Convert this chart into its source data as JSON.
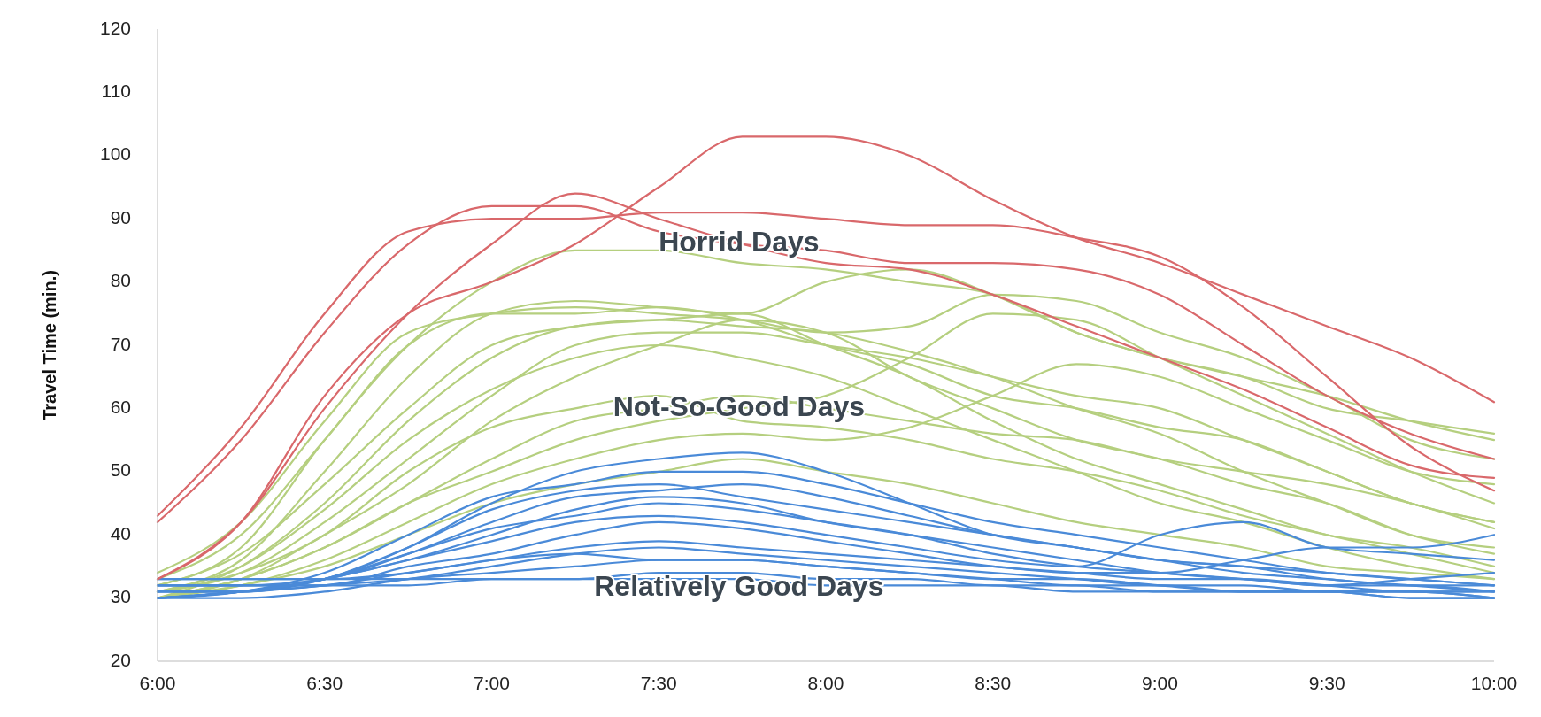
{
  "chart_data": {
    "type": "line",
    "ylabel": "Travel Time (min.)",
    "x": [
      6,
      6.25,
      6.5,
      6.75,
      7,
      7.25,
      7.5,
      7.75,
      8,
      8.25,
      8.5,
      8.75,
      9,
      9.25,
      9.5,
      9.75,
      10
    ],
    "xlim": [
      6,
      10
    ],
    "xticks": [
      {
        "value": 6,
        "label": "6:00"
      },
      {
        "value": 6.5,
        "label": "6:30"
      },
      {
        "value": 7,
        "label": "7:00"
      },
      {
        "value": 7.5,
        "label": "7:30"
      },
      {
        "value": 8,
        "label": "8:00"
      },
      {
        "value": 8.5,
        "label": "8:30"
      },
      {
        "value": 9,
        "label": "9:00"
      },
      {
        "value": 9.5,
        "label": "9:30"
      },
      {
        "value": 10,
        "label": "10:00"
      }
    ],
    "ylim": [
      20,
      120
    ],
    "yticks": [
      20,
      30,
      40,
      50,
      60,
      70,
      80,
      90,
      100,
      110,
      120
    ],
    "series": [
      {
        "color": "#b5cf7f",
        "values": [
          32,
          38,
          55,
          70,
          80,
          85,
          85,
          83,
          82,
          80,
          78,
          72,
          68,
          65,
          62,
          58,
          55
        ]
      },
      {
        "color": "#b5cf7f",
        "values": [
          31,
          36,
          50,
          65,
          75,
          77,
          76,
          75,
          80,
          82,
          78,
          72,
          68,
          65,
          60,
          58,
          56
        ]
      },
      {
        "color": "#b5cf7f",
        "values": [
          34,
          42,
          58,
          72,
          75,
          76,
          75,
          74,
          72,
          73,
          78,
          77,
          72,
          68,
          62,
          55,
          52
        ]
      },
      {
        "color": "#b5cf7f",
        "values": [
          33,
          40,
          55,
          70,
          75,
          75,
          76,
          74,
          70,
          67,
          62,
          60,
          57,
          55,
          50,
          45,
          42
        ]
      },
      {
        "color": "#b5cf7f",
        "values": [
          30,
          35,
          45,
          58,
          68,
          73,
          74,
          73,
          72,
          69,
          65,
          60,
          56,
          50,
          45,
          40,
          38
        ]
      },
      {
        "color": "#b5cf7f",
        "values": [
          31,
          34,
          42,
          52,
          62,
          70,
          72,
          72,
          70,
          68,
          65,
          62,
          60,
          55,
          50,
          45,
          42
        ]
      },
      {
        "color": "#b5cf7f",
        "values": [
          30,
          33,
          40,
          48,
          58,
          65,
          70,
          74,
          72,
          65,
          60,
          55,
          52,
          48,
          45,
          40,
          37
        ]
      },
      {
        "color": "#b5cf7f",
        "values": [
          32,
          37,
          48,
          60,
          70,
          73,
          74,
          75,
          70,
          65,
          58,
          52,
          48,
          44,
          40,
          38,
          35
        ]
      },
      {
        "color": "#b5cf7f",
        "values": [
          30,
          33,
          38,
          45,
          52,
          58,
          60,
          62,
          60,
          58,
          56,
          55,
          52,
          50,
          48,
          45,
          41
        ]
      },
      {
        "color": "#b5cf7f",
        "values": [
          31,
          34,
          40,
          50,
          57,
          60,
          62,
          58,
          57,
          55,
          52,
          50,
          47,
          43,
          40,
          37,
          34
        ]
      },
      {
        "color": "#b5cf7f",
        "values": [
          30,
          32,
          36,
          42,
          48,
          52,
          55,
          56,
          55,
          57,
          62,
          67,
          65,
          60,
          55,
          50,
          48
        ]
      },
      {
        "color": "#b5cf7f",
        "values": [
          30,
          33,
          38,
          45,
          50,
          55,
          58,
          60,
          62,
          68,
          75,
          74,
          68,
          62,
          56,
          50,
          45
        ]
      },
      {
        "color": "#b5cf7f",
        "values": [
          31,
          35,
          44,
          55,
          63,
          68,
          70,
          68,
          65,
          60,
          55,
          50,
          45,
          42,
          38,
          35,
          33
        ]
      },
      {
        "color": "#b5cf7f",
        "values": [
          30,
          32,
          35,
          40,
          45,
          48,
          50,
          52,
          50,
          48,
          45,
          42,
          40,
          38,
          35,
          34,
          33
        ]
      },
      {
        "color": "#4a8ad8",
        "values": [
          30,
          31,
          33,
          38,
          45,
          50,
          52,
          53,
          50,
          45,
          40,
          38,
          36,
          35,
          33,
          32,
          31
        ]
      },
      {
        "color": "#4a8ad8",
        "values": [
          30,
          31,
          34,
          40,
          46,
          48,
          50,
          50,
          48,
          45,
          42,
          40,
          38,
          36,
          34,
          33,
          32
        ]
      },
      {
        "color": "#4a8ad8",
        "values": [
          31,
          31,
          33,
          38,
          44,
          47,
          48,
          46,
          44,
          42,
          40,
          38,
          36,
          35,
          34,
          33,
          32
        ]
      },
      {
        "color": "#4a8ad8",
        "values": [
          31,
          31,
          33,
          36,
          40,
          44,
          46,
          45,
          42,
          40,
          38,
          36,
          34,
          33,
          32,
          32,
          31
        ]
      },
      {
        "color": "#4a8ad8",
        "values": [
          30,
          31,
          33,
          36,
          39,
          42,
          43,
          42,
          40,
          38,
          36,
          35,
          40,
          42,
          38,
          37,
          36
        ]
      },
      {
        "color": "#4a8ad8",
        "values": [
          32,
          32,
          32,
          35,
          37,
          40,
          42,
          41,
          39,
          37,
          35,
          34,
          33,
          33,
          32,
          31,
          31
        ]
      },
      {
        "color": "#4a8ad8",
        "values": [
          30,
          31,
          32,
          34,
          36,
          38,
          39,
          38,
          37,
          36,
          35,
          34,
          34,
          36,
          38,
          38,
          40
        ]
      },
      {
        "color": "#4a8ad8",
        "values": [
          31,
          31,
          32,
          33,
          35,
          37,
          38,
          37,
          36,
          35,
          34,
          33,
          32,
          32,
          31,
          31,
          30
        ]
      },
      {
        "color": "#4a8ad8",
        "values": [
          30,
          30,
          31,
          33,
          34,
          35,
          36,
          36,
          35,
          34,
          33,
          32,
          32,
          31,
          31,
          31,
          30
        ]
      },
      {
        "color": "#4a8ad8",
        "values": [
          32,
          32,
          32,
          32,
          33,
          33,
          34,
          34,
          33,
          33,
          32,
          32,
          31,
          31,
          31,
          30,
          30
        ]
      },
      {
        "color": "#4a8ad8",
        "values": [
          33,
          33,
          33,
          33,
          33,
          33,
          33,
          33,
          32,
          32,
          32,
          31,
          31,
          31,
          31,
          31,
          31
        ]
      },
      {
        "color": "#4a8ad8",
        "values": [
          32,
          32,
          33,
          37,
          42,
          46,
          47,
          48,
          46,
          43,
          40,
          38,
          36,
          34,
          33,
          32,
          32
        ]
      },
      {
        "color": "#4a8ad8",
        "values": [
          30,
          31,
          33,
          37,
          41,
          43,
          45,
          44,
          42,
          40,
          37,
          35,
          34,
          33,
          32,
          33,
          34
        ]
      },
      {
        "color": "#4a8ad8",
        "values": [
          33,
          33,
          33,
          34,
          36,
          37,
          36,
          36,
          35,
          34,
          33,
          33,
          32,
          31,
          31,
          30,
          30
        ]
      },
      {
        "color": "#d9686b",
        "values": [
          42,
          55,
          72,
          86,
          92,
          92,
          88,
          86,
          85,
          83,
          83,
          82,
          78,
          70,
          62,
          56,
          52
        ]
      },
      {
        "color": "#d9686b",
        "values": [
          43,
          57,
          75,
          88,
          90,
          90,
          91,
          91,
          90,
          89,
          89,
          87,
          84,
          76,
          65,
          54,
          47
        ]
      },
      {
        "color": "#d9686b",
        "values": [
          33,
          42,
          62,
          75,
          80,
          86,
          95,
          103,
          103,
          100,
          93,
          87,
          83,
          78,
          73,
          68,
          61
        ]
      },
      {
        "color": "#d9686b",
        "values": [
          33,
          42,
          60,
          75,
          86,
          94,
          90,
          86,
          83,
          82,
          78,
          73,
          68,
          63,
          57,
          51,
          49
        ]
      }
    ],
    "annotations": [
      "Horrid Days",
      "Not-So-Good Days",
      "Relatively Good Days"
    ]
  }
}
